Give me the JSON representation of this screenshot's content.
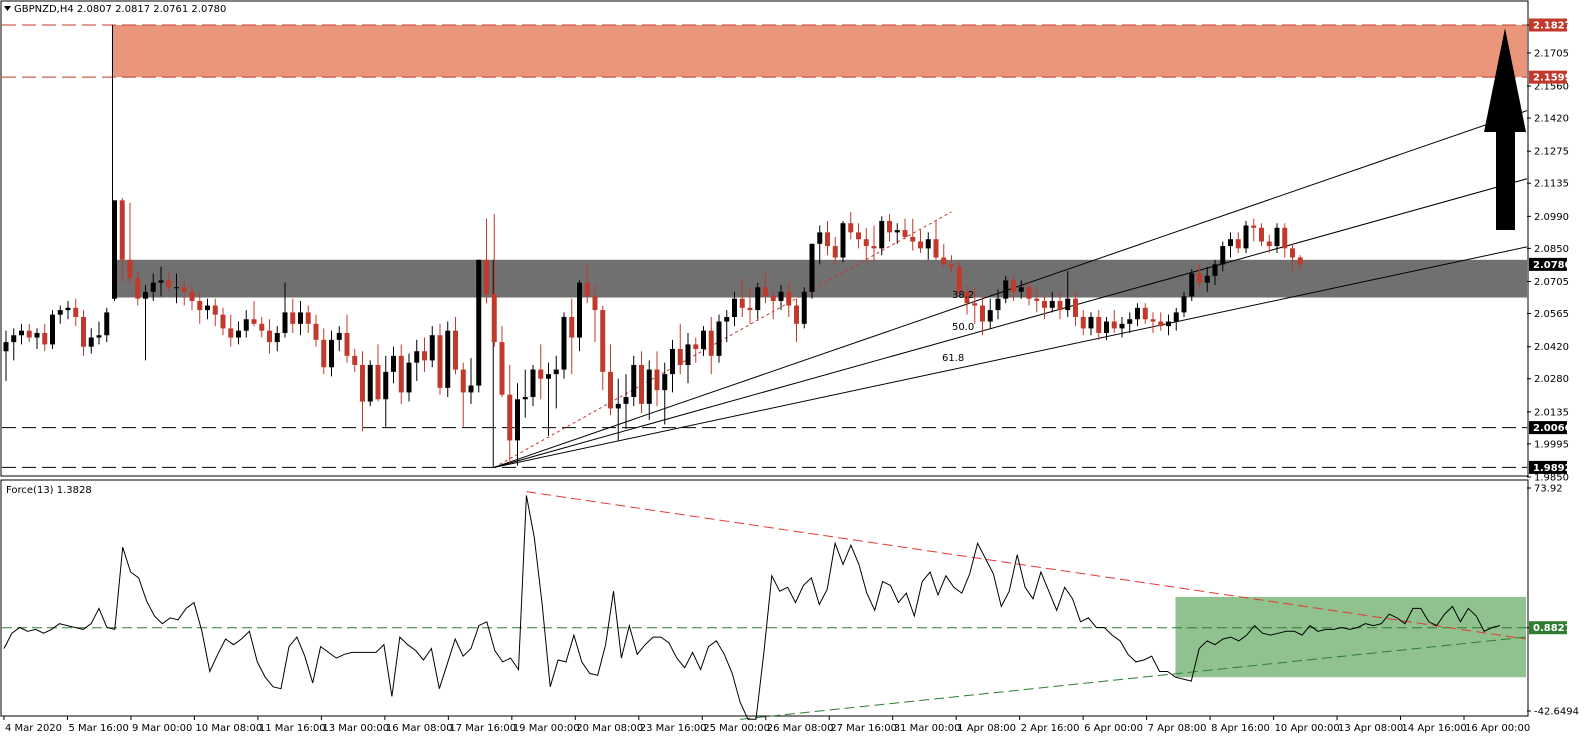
{
  "chart_data": [
    {
      "type": "candlestick",
      "symbol_header": "GBPNZD,H4  2.0807 2.0817 2.0761 2.0780",
      "y_ticks": [
        "2.1827",
        "2.1705",
        "2.1560",
        "2.1420",
        "2.1275",
        "2.1135",
        "2.0990",
        "2.0850",
        "2.0705",
        "2.0565",
        "2.0420",
        "2.0280",
        "2.0135",
        "1.9995",
        "1.9850"
      ],
      "ylim": [
        1.985,
        2.192
      ],
      "price_tags": [
        {
          "value": 2.1827,
          "label": "2.1827",
          "color": "#c0392b"
        },
        {
          "value": 2.1599,
          "label": "2.1599",
          "color": "#c0392b"
        },
        {
          "value": 2.078,
          "label": "2.0780",
          "color": "#000000"
        },
        {
          "value": 2.0066,
          "label": "2.0066",
          "color": "#000000"
        },
        {
          "value": 1.9892,
          "label": "1.9892",
          "color": "#000000"
        }
      ],
      "resistance_zone": {
        "from": 2.1599,
        "to": 2.1827,
        "color": "#e9967a"
      },
      "support_zone": {
        "from": 2.0635,
        "to": 2.08,
        "color": "#707070"
      },
      "horizontal_levels": [
        2.1827,
        2.1599,
        2.0066,
        1.9892
      ],
      "fib_fan_labels": [
        "38.2",
        "50.0",
        "61.8"
      ],
      "up_color": "#000000",
      "down_color": "#c0392b",
      "candles": [
        [
          2.04,
          2.049,
          2.027,
          2.044
        ],
        [
          2.044,
          2.05,
          2.036,
          2.047
        ],
        [
          2.047,
          2.052,
          2.043,
          2.049
        ],
        [
          2.049,
          2.052,
          2.044,
          2.046
        ],
        [
          2.046,
          2.05,
          2.041,
          2.048
        ],
        [
          2.048,
          2.052,
          2.04,
          2.043
        ],
        [
          2.043,
          2.058,
          2.041,
          2.056
        ],
        [
          2.056,
          2.06,
          2.052,
          2.058
        ],
        [
          2.058,
          2.062,
          2.054,
          2.059
        ],
        [
          2.059,
          2.063,
          2.051,
          2.055
        ],
        [
          2.055,
          2.058,
          2.038,
          2.042
        ],
        [
          2.042,
          2.05,
          2.039,
          2.046
        ],
        [
          2.046,
          2.053,
          2.043,
          2.047
        ],
        [
          2.047,
          2.059,
          2.044,
          2.057
        ],
        [
          2.063,
          2.106,
          2.062,
          2.106
        ],
        [
          2.106,
          2.107,
          2.07,
          2.08
        ],
        [
          2.08,
          2.105,
          2.07,
          2.072
        ],
        [
          2.072,
          2.075,
          2.06,
          2.063
        ],
        [
          2.063,
          2.069,
          2.036,
          2.066
        ],
        [
          2.066,
          2.074,
          2.062,
          2.07
        ],
        [
          2.07,
          2.077,
          2.064,
          2.071
        ],
        [
          2.071,
          2.075,
          2.066,
          2.068
        ],
        [
          2.068,
          2.074,
          2.061,
          2.068
        ],
        [
          2.068,
          2.071,
          2.06,
          2.066
        ],
        [
          2.066,
          2.069,
          2.058,
          2.062
        ],
        [
          2.062,
          2.066,
          2.052,
          2.058
        ],
        [
          2.058,
          2.063,
          2.054,
          2.06
        ],
        [
          2.06,
          2.063,
          2.051,
          2.056
        ],
        [
          2.056,
          2.059,
          2.047,
          2.05
        ],
        [
          2.05,
          2.056,
          2.042,
          2.046
        ],
        [
          2.046,
          2.053,
          2.043,
          2.049
        ],
        [
          2.049,
          2.058,
          2.046,
          2.054
        ],
        [
          2.054,
          2.062,
          2.051,
          2.052
        ],
        [
          2.052,
          2.055,
          2.046,
          2.049
        ],
        [
          2.049,
          2.054,
          2.039,
          2.044
        ],
        [
          2.044,
          2.051,
          2.04,
          2.048
        ],
        [
          2.048,
          2.07,
          2.046,
          2.057
        ],
        [
          2.057,
          2.063,
          2.048,
          2.052
        ],
        [
          2.052,
          2.062,
          2.047,
          2.057
        ],
        [
          2.057,
          2.06,
          2.048,
          2.052
        ],
        [
          2.052,
          2.056,
          2.042,
          2.045
        ],
        [
          2.045,
          2.05,
          2.03,
          2.033
        ],
        [
          2.033,
          2.049,
          2.029,
          2.045
        ],
        [
          2.045,
          2.051,
          2.04,
          2.048
        ],
        [
          2.048,
          2.056,
          2.035,
          2.038
        ],
        [
          2.038,
          2.041,
          2.031,
          2.034
        ],
        [
          2.034,
          2.04,
          2.005,
          2.018
        ],
        [
          2.018,
          2.036,
          2.016,
          2.034
        ],
        [
          2.034,
          2.043,
          2.018,
          2.019
        ],
        [
          2.019,
          2.038,
          2.007,
          2.031
        ],
        [
          2.031,
          2.042,
          2.026,
          2.038
        ],
        [
          2.038,
          2.043,
          2.017,
          2.022
        ],
        [
          2.022,
          2.039,
          2.018,
          2.035
        ],
        [
          2.035,
          2.045,
          2.027,
          2.04
        ],
        [
          2.04,
          2.046,
          2.031,
          2.036
        ],
        [
          2.036,
          2.051,
          2.033,
          2.047
        ],
        [
          2.047,
          2.052,
          2.021,
          2.024
        ],
        [
          2.024,
          2.053,
          2.02,
          2.049
        ],
        [
          2.049,
          2.055,
          2.03,
          2.032
        ],
        [
          2.032,
          2.035,
          2.007,
          2.022
        ],
        [
          2.022,
          2.037,
          2.017,
          2.025
        ],
        [
          2.025,
          2.08,
          2.022,
          2.08
        ],
        [
          2.08,
          2.098,
          2.061,
          2.065
        ],
        [
          2.065,
          2.1,
          2.042,
          2.044
        ],
        [
          2.044,
          2.051,
          2.02,
          2.021
        ],
        [
          2.021,
          2.034,
          1.991,
          2.001
        ],
        [
          2.001,
          2.026,
          1.99,
          2.019
        ],
        [
          2.019,
          2.032,
          2.011,
          2.02
        ],
        [
          2.02,
          2.034,
          2.016,
          2.032
        ],
        [
          2.032,
          2.043,
          2.019,
          2.028
        ],
        [
          2.028,
          2.035,
          2.003,
          2.03
        ],
        [
          2.03,
          2.038,
          2.015,
          2.032
        ],
        [
          2.032,
          2.057,
          2.028,
          2.055
        ],
        [
          2.055,
          2.063,
          2.03,
          2.046
        ],
        [
          2.046,
          2.071,
          2.04,
          2.07
        ],
        [
          2.07,
          2.078,
          2.061,
          2.064
        ],
        [
          2.064,
          2.069,
          2.044,
          2.058
        ],
        [
          2.058,
          2.06,
          2.023,
          2.031
        ],
        [
          2.031,
          2.043,
          2.012,
          2.015
        ],
        [
          2.015,
          2.028,
          2.001,
          2.017
        ],
        [
          2.017,
          2.03,
          2.006,
          2.02
        ],
        [
          2.02,
          2.038,
          2.016,
          2.034
        ],
        [
          2.034,
          2.04,
          2.013,
          2.017
        ],
        [
          2.017,
          2.036,
          2.01,
          2.032
        ],
        [
          2.032,
          2.04,
          2.016,
          2.023
        ],
        [
          2.023,
          2.035,
          2.008,
          2.03
        ],
        [
          2.03,
          2.045,
          2.022,
          2.041
        ],
        [
          2.041,
          2.052,
          2.03,
          2.034
        ],
        [
          2.034,
          2.048,
          2.026,
          2.043
        ],
        [
          2.043,
          2.046,
          2.035,
          2.041
        ],
        [
          2.041,
          2.051,
          2.038,
          2.049
        ],
        [
          2.049,
          2.055,
          2.03,
          2.038
        ],
        [
          2.038,
          2.056,
          2.035,
          2.053
        ],
        [
          2.053,
          2.058,
          2.044,
          2.055
        ],
        [
          2.055,
          2.066,
          2.051,
          2.063
        ],
        [
          2.063,
          2.072,
          2.055,
          2.059
        ],
        [
          2.059,
          2.068,
          2.052,
          2.058
        ],
        [
          2.058,
          2.07,
          2.054,
          2.068
        ],
        [
          2.068,
          2.075,
          2.061,
          2.064
        ],
        [
          2.064,
          2.066,
          2.054,
          2.062
        ],
        [
          2.062,
          2.069,
          2.058,
          2.066
        ],
        [
          2.066,
          2.07,
          2.055,
          2.06
        ],
        [
          2.06,
          2.063,
          2.044,
          2.052
        ],
        [
          2.052,
          2.068,
          2.05,
          2.066
        ],
        [
          2.066,
          2.087,
          2.063,
          2.087
        ],
        [
          2.087,
          2.095,
          2.078,
          2.092
        ],
        [
          2.092,
          2.097,
          2.082,
          2.086
        ],
        [
          2.086,
          2.09,
          2.078,
          2.081
        ],
        [
          2.081,
          2.097,
          2.079,
          2.096
        ],
        [
          2.096,
          2.101,
          2.089,
          2.092
        ],
        [
          2.092,
          2.096,
          2.085,
          2.089
        ],
        [
          2.089,
          2.094,
          2.079,
          2.086
        ],
        [
          2.086,
          2.095,
          2.079,
          2.085
        ],
        [
          2.085,
          2.099,
          2.082,
          2.097
        ],
        [
          2.097,
          2.1,
          2.088,
          2.092
        ],
        [
          2.092,
          2.096,
          2.087,
          2.093
        ],
        [
          2.093,
          2.098,
          2.089,
          2.09
        ],
        [
          2.09,
          2.098,
          2.084,
          2.088
        ],
        [
          2.088,
          2.093,
          2.083,
          2.085
        ],
        [
          2.085,
          2.092,
          2.08,
          2.089
        ],
        [
          2.089,
          2.097,
          2.08,
          2.081
        ],
        [
          2.081,
          2.087,
          2.077,
          2.078
        ],
        [
          2.078,
          2.082,
          2.074,
          2.077
        ],
        [
          2.077,
          2.079,
          2.064,
          2.066
        ],
        [
          2.066,
          2.069,
          2.056,
          2.061
        ],
        [
          2.061,
          2.068,
          2.052,
          2.06
        ],
        [
          2.06,
          2.064,
          2.047,
          2.053
        ],
        [
          2.053,
          2.063,
          2.05,
          2.058
        ],
        [
          2.058,
          2.067,
          2.054,
          2.063
        ],
        [
          2.063,
          2.073,
          2.061,
          2.071
        ],
        [
          2.071,
          2.073,
          2.062,
          2.066
        ],
        [
          2.066,
          2.071,
          2.063,
          2.068
        ],
        [
          2.068,
          2.07,
          2.06,
          2.063
        ],
        [
          2.063,
          2.067,
          2.057,
          2.062
        ],
        [
          2.062,
          2.065,
          2.054,
          2.059
        ],
        [
          2.059,
          2.066,
          2.057,
          2.062
        ],
        [
          2.062,
          2.066,
          2.054,
          2.058
        ],
        [
          2.058,
          2.075,
          2.055,
          2.063
        ],
        [
          2.063,
          2.066,
          2.051,
          2.055
        ],
        [
          2.055,
          2.058,
          2.047,
          2.05
        ],
        [
          2.05,
          2.057,
          2.047,
          2.055
        ],
        [
          2.055,
          2.058,
          2.045,
          2.048
        ],
        [
          2.048,
          2.055,
          2.045,
          2.053
        ],
        [
          2.053,
          2.058,
          2.048,
          2.05
        ],
        [
          2.05,
          2.055,
          2.046,
          2.052
        ],
        [
          2.052,
          2.057,
          2.048,
          2.054
        ],
        [
          2.054,
          2.061,
          2.051,
          2.059
        ],
        [
          2.059,
          2.061,
          2.052,
          2.054
        ],
        [
          2.054,
          2.057,
          2.048,
          2.053
        ],
        [
          2.053,
          2.057,
          2.049,
          2.051
        ],
        [
          2.051,
          2.056,
          2.047,
          2.053
        ],
        [
          2.053,
          2.059,
          2.049,
          2.057
        ],
        [
          2.057,
          2.066,
          2.055,
          2.064
        ],
        [
          2.064,
          2.076,
          2.062,
          2.074
        ],
        [
          2.074,
          2.078,
          2.067,
          2.07
        ],
        [
          2.07,
          2.077,
          2.066,
          2.073
        ],
        [
          2.073,
          2.08,
          2.069,
          2.078
        ],
        [
          2.078,
          2.088,
          2.075,
          2.086
        ],
        [
          2.086,
          2.092,
          2.081,
          2.089
        ],
        [
          2.089,
          2.092,
          2.083,
          2.085
        ],
        [
          2.085,
          2.097,
          2.083,
          2.095
        ],
        [
          2.095,
          2.098,
          2.088,
          2.094
        ],
        [
          2.094,
          2.096,
          2.086,
          2.088
        ],
        [
          2.088,
          2.091,
          2.083,
          2.086
        ],
        [
          2.086,
          2.096,
          2.083,
          2.094
        ],
        [
          2.094,
          2.096,
          2.081,
          2.085
        ],
        [
          2.085,
          2.087,
          2.074,
          2.081
        ],
        [
          2.081,
          2.082,
          2.076,
          2.078
        ]
      ]
    },
    {
      "type": "line",
      "header": "Force(13) 1.3828",
      "y_ticks": [
        "73.92",
        "0.8827",
        "-42.6494"
      ],
      "ylim": [
        -42.6494,
        73.92
      ],
      "level_tag": {
        "value": 0.8827,
        "label": "0.8827",
        "color": "#2e7d32"
      },
      "green_box_range": [
        -25,
        17
      ],
      "series_color": "#000000",
      "values": [
        -10,
        -2,
        1,
        -1,
        0,
        -2,
        0,
        3,
        2,
        1,
        0,
        3,
        11,
        1,
        0,
        43,
        30,
        27,
        15,
        7,
        3,
        6,
        5,
        11,
        14,
        -1,
        -22,
        -13,
        -5,
        -8,
        -5,
        -1,
        -17,
        -25,
        -30,
        -31,
        -9,
        -4,
        -14,
        -28,
        -9,
        -12,
        -15,
        -13,
        -12,
        -12,
        -12,
        -12,
        -8,
        -35,
        -4,
        -8,
        -11,
        -16,
        -10,
        -31,
        -18,
        -5,
        -14,
        -10,
        2,
        4,
        -11,
        -17,
        -15,
        -21,
        70,
        48,
        13,
        -30,
        -16,
        -17,
        -3,
        -17,
        -23,
        -24,
        -8,
        20,
        -15,
        2,
        -13,
        -8,
        -4,
        -4,
        -7,
        -15,
        -20,
        -12,
        -21,
        -9,
        -6,
        -13,
        -23,
        -38,
        -47,
        -47,
        -12,
        28,
        20,
        22,
        14,
        23,
        27,
        13,
        21,
        45,
        34,
        44,
        34,
        19,
        10,
        25,
        23,
        14,
        19,
        7,
        25,
        30,
        18,
        28,
        22,
        19,
        29,
        45,
        37,
        29,
        12,
        20,
        39,
        22,
        16,
        30,
        20,
        10,
        22,
        16,
        4,
        6,
        1,
        1,
        -3,
        -6,
        -13,
        -17,
        -16,
        -14,
        -22,
        -22,
        -25,
        -26,
        -27,
        -10,
        -6,
        -8,
        -5,
        -4,
        -6,
        -3,
        2,
        -2,
        -3,
        -2,
        -1,
        -1,
        -3,
        2,
        -1,
        0,
        0,
        1,
        0,
        1,
        3,
        2,
        3,
        8,
        6,
        3,
        11,
        11,
        4,
        2,
        8,
        12,
        4,
        11,
        7,
        -1,
        1,
        2
      ]
    }
  ],
  "x_labels": [
    "4 Mar 2020",
    "5 Mar 16:00",
    "9 Mar 00:00",
    "10 Mar 08:00",
    "11 Mar 16:00",
    "13 Mar 00:00",
    "16 Mar 08:00",
    "17 Mar 16:00",
    "19 Mar 00:00",
    "20 Mar 08:00",
    "23 Mar 16:00",
    "25 Mar 00:00",
    "26 Mar 08:00",
    "27 Mar 16:00",
    "31 Mar 00:00",
    "1 Apr 08:00",
    "2 Apr 16:00",
    "6 Apr 00:00",
    "7 Apr 08:00",
    "8 Apr 16:00",
    "10 Apr 00:00",
    "13 Apr 08:00",
    "14 Apr 16:00",
    "16 Apr 00:00"
  ]
}
